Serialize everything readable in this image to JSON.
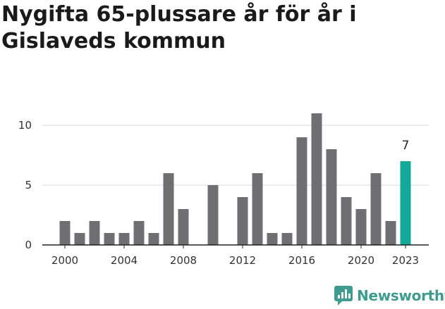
{
  "header": {
    "title": "Nygifta 65-plussare år för år i Gislaveds kommun"
  },
  "brand": {
    "name": "Newsworthy",
    "icon": "newsworthy-chart-icon"
  },
  "colors": {
    "bar": "#6f6f73",
    "highlight": "#13a89a",
    "grid": "#d9d9d9",
    "axis": "#222222",
    "brand": "#3f9b8f"
  },
  "chart_data": {
    "type": "bar",
    "title": "Nygifta 65-plussare år för år i Gislaveds kommun",
    "xlabel": "",
    "ylabel": "",
    "categories": [
      2000,
      2001,
      2002,
      2003,
      2004,
      2005,
      2006,
      2007,
      2008,
      2009,
      2010,
      2011,
      2012,
      2013,
      2014,
      2015,
      2016,
      2017,
      2018,
      2019,
      2020,
      2021,
      2022,
      2023
    ],
    "values": [
      2,
      1,
      2,
      1,
      1,
      2,
      1,
      6,
      3,
      0,
      5,
      0,
      4,
      6,
      1,
      1,
      9,
      11,
      8,
      4,
      3,
      6,
      2,
      7
    ],
    "highlight_index": 23,
    "highlight_label": "7",
    "x_ticks": [
      "2000",
      "2004",
      "2008",
      "2012",
      "2016",
      "2020",
      "2023"
    ],
    "y_ticks": [
      "0",
      "5",
      "10"
    ],
    "ylim": [
      0,
      12
    ],
    "grid": true
  }
}
